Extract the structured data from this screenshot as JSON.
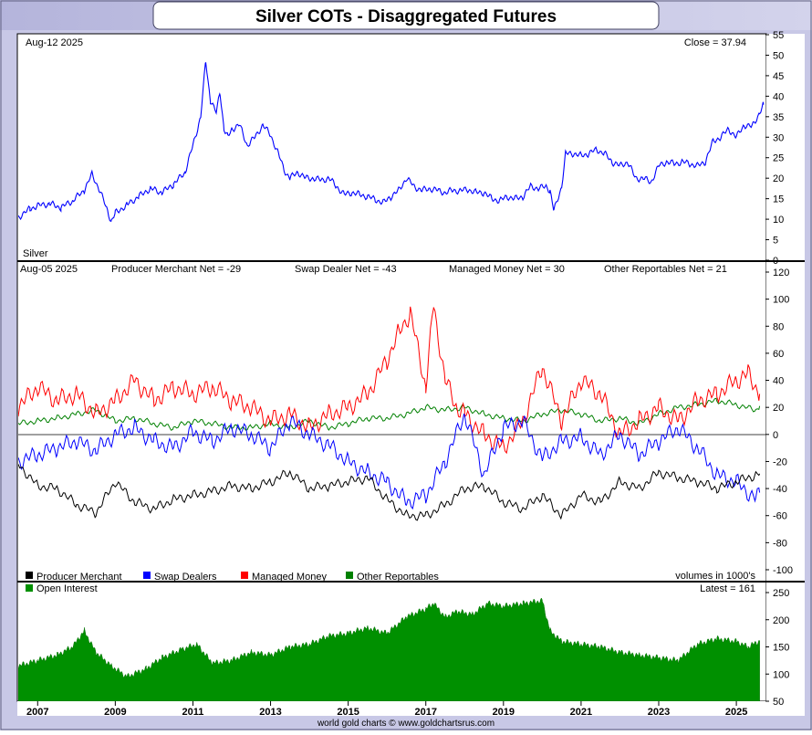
{
  "title": "Silver COTs - Disaggregated Futures",
  "footer": "world gold charts © www.goldchartsrus.com",
  "colors": {
    "frame_bg": "#c8c8e6",
    "price_line": "#0000ff",
    "producer": "#000000",
    "swap": "#0000ff",
    "managed": "#ff0000",
    "other": "#008000",
    "open_interest": "#009000"
  },
  "x_axis": {
    "range": [
      2006.5,
      2025.75
    ],
    "ticks": [
      "2007",
      "2009",
      "2011",
      "2013",
      "2015",
      "2017",
      "2019",
      "2021",
      "2023",
      "2025"
    ]
  },
  "chart_data": [
    {
      "type": "line",
      "panel": "price",
      "date_label": "Aug-12  2025",
      "close_label": "Close = 37.94",
      "series_label": "Silver",
      "ylim": [
        0,
        55
      ],
      "yticks": [
        0,
        5,
        10,
        15,
        20,
        25,
        30,
        35,
        40,
        45,
        50,
        55
      ],
      "grid": false,
      "series": [
        {
          "x": [
            2006.5,
            2006.8,
            2007.0,
            2007.3,
            2007.6,
            2007.9,
            2008.2,
            2008.4,
            2008.6,
            2008.8,
            2008.9,
            2009.0,
            2009.3,
            2009.6,
            2009.9,
            2010.2,
            2010.5,
            2010.8,
            2011.0,
            2011.2,
            2011.33,
            2011.45,
            2011.6,
            2011.7,
            2011.8,
            2011.9,
            2012.0,
            2012.2,
            2012.4,
            2012.6,
            2012.8,
            2013.0,
            2013.2,
            2013.35,
            2013.5,
            2013.7,
            2013.9,
            2014.1,
            2014.3,
            2014.5,
            2014.7,
            2014.9,
            2015.1,
            2015.3,
            2015.5,
            2015.7,
            2015.9,
            2016.1,
            2016.3,
            2016.5,
            2016.7,
            2016.9,
            2017.1,
            2017.3,
            2017.5,
            2017.7,
            2017.9,
            2018.1,
            2018.3,
            2018.5,
            2018.7,
            2018.9,
            2019.1,
            2019.3,
            2019.5,
            2019.7,
            2019.9,
            2020.1,
            2020.2,
            2020.3,
            2020.5,
            2020.6,
            2020.8,
            2021.0,
            2021.2,
            2021.4,
            2021.6,
            2021.8,
            2022.0,
            2022.2,
            2022.4,
            2022.6,
            2022.8,
            2023.0,
            2023.2,
            2023.4,
            2023.6,
            2023.8,
            2024.0,
            2024.2,
            2024.4,
            2024.6,
            2024.8,
            2025.0,
            2025.2,
            2025.4,
            2025.6,
            2025.7
          ],
          "values": [
            10.5,
            12.5,
            13.3,
            13.8,
            12.8,
            14.5,
            17,
            21,
            17,
            12,
            9.5,
            11.5,
            13.5,
            15.5,
            17.5,
            16.5,
            18.5,
            21.5,
            28,
            35,
            48.5,
            39,
            36,
            41,
            32,
            30,
            32,
            33,
            28,
            30,
            33,
            30.5,
            26,
            22,
            20,
            21.5,
            20,
            20,
            19.5,
            20,
            18,
            16,
            16.5,
            16,
            15.5,
            14.8,
            14,
            15.5,
            17,
            20,
            18,
            17,
            17.5,
            17,
            16.5,
            17,
            17,
            17.2,
            16.5,
            16.5,
            15,
            14.5,
            15.5,
            15,
            15.5,
            18,
            17.5,
            18,
            17,
            12,
            18,
            26,
            26,
            25.5,
            26,
            27,
            26,
            24,
            23,
            24,
            20,
            20,
            19,
            23,
            24,
            23.5,
            24,
            23.5,
            23,
            24,
            29,
            30,
            32,
            30,
            33,
            32.5,
            36,
            37.94
          ]
        }
      ]
    },
    {
      "type": "line",
      "panel": "cot",
      "date_label": "Aug-05  2025",
      "header_labels": [
        "Producer Merchant Net = -29",
        "Swap Dealer Net = -43",
        "Managed Money Net = 30",
        "Other Reportables Net = 21"
      ],
      "ylim": [
        -100,
        120
      ],
      "yticks": [
        -100,
        -80,
        -60,
        -40,
        -20,
        0,
        20,
        40,
        60,
        80,
        100,
        120
      ],
      "units_label": "volumes in 1000's",
      "legend_position": "bottom-left",
      "legend": [
        "Producer Merchant",
        "Swap Dealers",
        "Managed Money",
        "Other Reportables"
      ],
      "series": [
        {
          "name": "Producer Merchant",
          "x": [
            2006.5,
            2007.0,
            2007.5,
            2008.0,
            2008.5,
            2009.0,
            2009.5,
            2010.0,
            2010.5,
            2011.0,
            2011.5,
            2012.0,
            2012.5,
            2013.0,
            2013.5,
            2014.0,
            2014.5,
            2015.0,
            2015.5,
            2016.0,
            2016.5,
            2017.0,
            2017.5,
            2018.0,
            2018.5,
            2019.0,
            2019.5,
            2020.0,
            2020.5,
            2021.0,
            2021.5,
            2022.0,
            2022.5,
            2023.0,
            2023.5,
            2024.0,
            2024.5,
            2025.0,
            2025.5,
            2025.6
          ],
          "values": [
            -22,
            -38,
            -40,
            -52,
            -58,
            -35,
            -50,
            -55,
            -48,
            -45,
            -42,
            -38,
            -40,
            -35,
            -28,
            -40,
            -38,
            -35,
            -32,
            -48,
            -60,
            -60,
            -52,
            -40,
            -38,
            -50,
            -55,
            -45,
            -60,
            -45,
            -50,
            -35,
            -40,
            -28,
            -32,
            -35,
            -40,
            -35,
            -30,
            -29
          ]
        },
        {
          "name": "Swap Dealers",
          "x": [
            2006.5,
            2007.0,
            2007.5,
            2008.0,
            2008.5,
            2009.0,
            2009.5,
            2010.0,
            2010.5,
            2011.0,
            2011.5,
            2012.0,
            2012.5,
            2013.0,
            2013.5,
            2014.0,
            2014.5,
            2015.0,
            2015.5,
            2016.0,
            2016.5,
            2017.0,
            2017.5,
            2018.0,
            2018.5,
            2019.0,
            2019.5,
            2020.0,
            2020.5,
            2021.0,
            2021.5,
            2022.0,
            2022.5,
            2023.0,
            2023.5,
            2024.0,
            2024.5,
            2025.0,
            2025.5,
            2025.6
          ],
          "values": [
            -20,
            -15,
            -10,
            -5,
            -12,
            0,
            5,
            -5,
            -10,
            2,
            -5,
            5,
            0,
            -10,
            10,
            0,
            -8,
            -20,
            -28,
            -35,
            -50,
            -45,
            -20,
            15,
            -30,
            5,
            10,
            -18,
            -5,
            -2,
            -15,
            0,
            -15,
            -5,
            5,
            -10,
            -30,
            -35,
            -48,
            -43
          ]
        },
        {
          "name": "Managed Money",
          "x": [
            2006.5,
            2007.0,
            2007.5,
            2008.0,
            2008.5,
            2009.0,
            2009.5,
            2010.0,
            2010.5,
            2011.0,
            2011.5,
            2012.0,
            2012.5,
            2013.0,
            2013.5,
            2014.0,
            2014.5,
            2015.0,
            2015.5,
            2016.0,
            2016.3,
            2016.6,
            2017.0,
            2017.2,
            2017.5,
            2017.8,
            2018.0,
            2018.5,
            2019.0,
            2019.5,
            2020.0,
            2020.5,
            2021.0,
            2021.5,
            2022.0,
            2022.5,
            2023.0,
            2023.5,
            2024.0,
            2024.5,
            2025.0,
            2025.3,
            2025.6
          ],
          "values": [
            20,
            35,
            25,
            30,
            15,
            25,
            40,
            25,
            35,
            30,
            35,
            25,
            20,
            10,
            15,
            5,
            15,
            20,
            30,
            55,
            75,
            90,
            35,
            95,
            40,
            20,
            15,
            0,
            -10,
            10,
            50,
            10,
            40,
            30,
            0,
            10,
            20,
            10,
            25,
            30,
            40,
            45,
            30
          ]
        },
        {
          "name": "Other Reportables",
          "x": [
            2006.5,
            2007.0,
            2007.5,
            2008.0,
            2008.5,
            2009.0,
            2009.5,
            2010.0,
            2010.5,
            2011.0,
            2011.5,
            2012.0,
            2012.5,
            2013.0,
            2013.5,
            2014.0,
            2014.5,
            2015.0,
            2015.5,
            2016.0,
            2016.5,
            2017.0,
            2017.5,
            2018.0,
            2018.5,
            2019.0,
            2019.5,
            2020.0,
            2020.5,
            2021.0,
            2021.5,
            2022.0,
            2022.5,
            2023.0,
            2023.5,
            2024.0,
            2024.5,
            2025.0,
            2025.5,
            2025.6
          ],
          "values": [
            8,
            10,
            12,
            15,
            18,
            10,
            12,
            8,
            5,
            10,
            8,
            5,
            5,
            8,
            5,
            10,
            5,
            8,
            12,
            12,
            15,
            20,
            18,
            20,
            15,
            12,
            10,
            15,
            18,
            15,
            10,
            12,
            8,
            15,
            20,
            22,
            25,
            22,
            18,
            21
          ]
        }
      ]
    },
    {
      "type": "area",
      "panel": "open_interest",
      "legend": [
        "Open Interest"
      ],
      "latest_label": "Latest = 161",
      "ylim": [
        50,
        250
      ],
      "yticks": [
        50,
        100,
        150,
        200,
        250
      ],
      "series": [
        {
          "name": "Open Interest",
          "x": [
            2006.5,
            2007.0,
            2007.5,
            2007.9,
            2008.2,
            2008.5,
            2008.9,
            2009.3,
            2009.8,
            2010.2,
            2010.7,
            2011.1,
            2011.5,
            2012.0,
            2012.5,
            2013.0,
            2013.5,
            2014.0,
            2014.5,
            2015.0,
            2015.5,
            2016.0,
            2016.5,
            2017.0,
            2017.2,
            2017.5,
            2017.8,
            2018.2,
            2018.6,
            2019.0,
            2019.5,
            2020.0,
            2020.2,
            2020.5,
            2021.0,
            2021.5,
            2022.0,
            2022.5,
            2023.0,
            2023.5,
            2024.0,
            2024.5,
            2025.0,
            2025.3,
            2025.6
          ],
          "values": [
            115,
            125,
            135,
            150,
            180,
            140,
            115,
            95,
            110,
            130,
            145,
            155,
            120,
            125,
            140,
            135,
            150,
            155,
            170,
            175,
            185,
            175,
            205,
            220,
            230,
            205,
            215,
            210,
            230,
            225,
            230,
            235,
            180,
            160,
            155,
            150,
            140,
            135,
            130,
            125,
            155,
            165,
            160,
            150,
            161
          ]
        }
      ]
    }
  ]
}
